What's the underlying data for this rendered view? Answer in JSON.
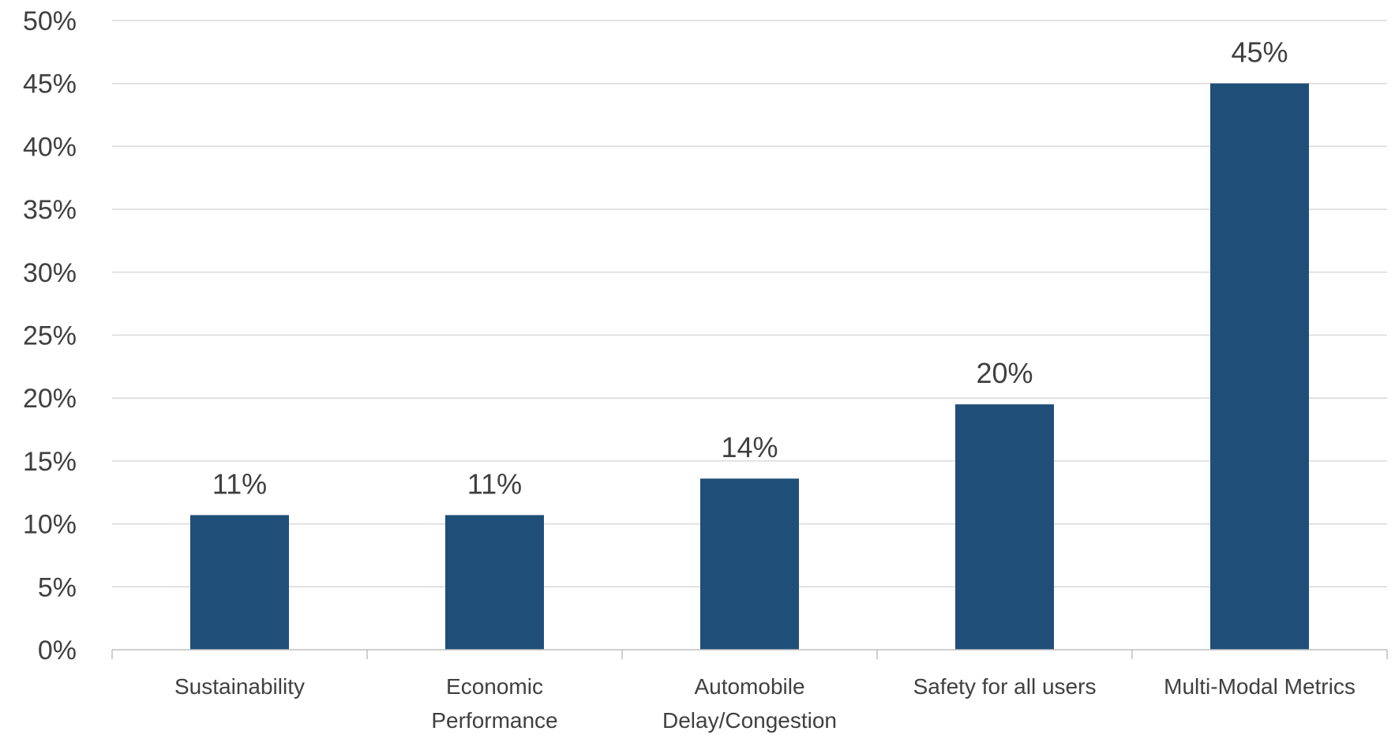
{
  "chart_data": {
    "type": "bar",
    "categories": [
      [
        "Sustainability"
      ],
      [
        "Economic",
        "Performance"
      ],
      [
        "Automobile",
        "Delay/Congestion"
      ],
      [
        "Safety for all users"
      ],
      [
        "Multi-Modal Metrics"
      ]
    ],
    "values": [
      10.7,
      10.7,
      13.6,
      19.5,
      45.0
    ],
    "data_labels": [
      "11%",
      "11%",
      "14%",
      "20%",
      "45%"
    ],
    "y_ticks": [
      0,
      5,
      10,
      15,
      20,
      25,
      30,
      35,
      40,
      45,
      50
    ],
    "y_tick_labels": [
      "0%",
      "5%",
      "10%",
      "15%",
      "20%",
      "25%",
      "30%",
      "35%",
      "40%",
      "45%",
      "50%"
    ],
    "ylim": [
      0,
      50
    ],
    "title": "",
    "xlabel": "",
    "ylabel": "",
    "grid": true,
    "legend": "none",
    "bar_color": "#1f4e79"
  }
}
